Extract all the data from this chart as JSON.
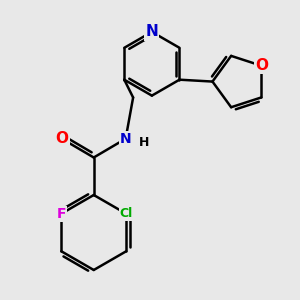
{
  "background_color": "#e8e8e8",
  "atom_colors": {
    "N": "#0000cc",
    "O": "#ff0000",
    "F": "#dd00dd",
    "Cl": "#00aa00",
    "C": "#000000",
    "H": "#000000"
  },
  "bond_color": "#000000",
  "bond_width": 1.8,
  "figsize": [
    3.0,
    3.0
  ],
  "dpi": 100
}
